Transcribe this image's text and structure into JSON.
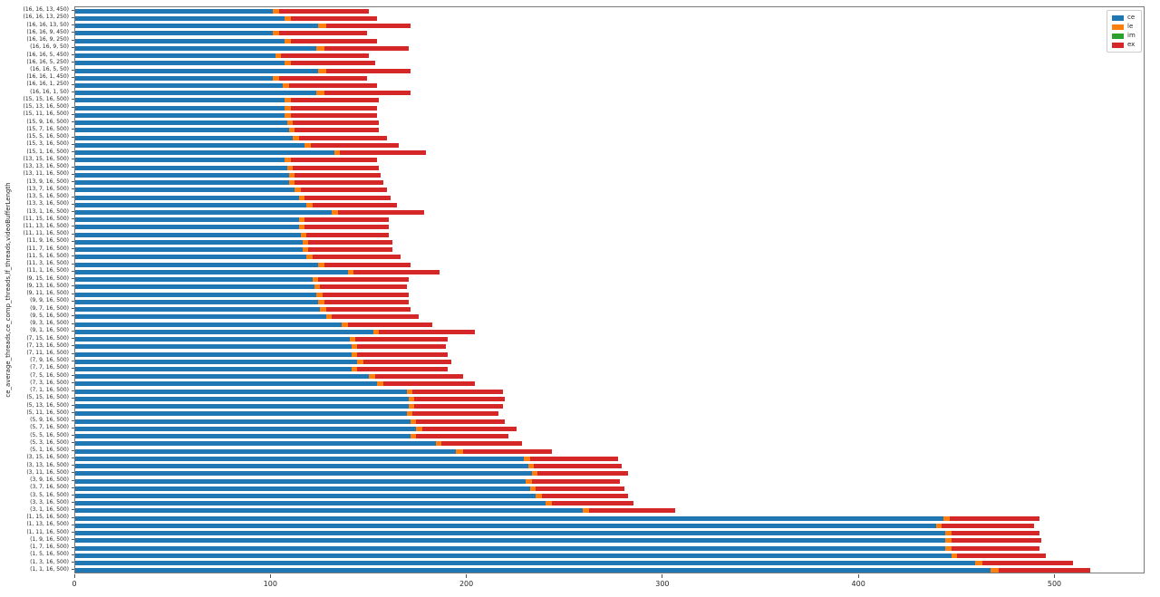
{
  "chart_data": {
    "type": "bar",
    "orientation": "horizontal",
    "stacked": true,
    "title": "",
    "xlabel": "",
    "ylabel": "ce_average_threads,ce_comp_threads,lf_threads,videoBufferLength",
    "xlim": [
      0,
      546
    ],
    "xticks": [
      0,
      100,
      200,
      300,
      400,
      500
    ],
    "grid": false,
    "legend_position": "upper right",
    "colors": {
      "ce": "#1f77b4",
      "le": "#ff7f0e",
      "im": "#2ca02c",
      "ex": "#d62728"
    },
    "legend": [
      {
        "name": "ce",
        "color": "#1f77b4"
      },
      {
        "name": "le",
        "color": "#ff7f0e"
      },
      {
        "name": "im",
        "color": "#2ca02c"
      },
      {
        "name": "ex",
        "color": "#d62728"
      }
    ],
    "categories": [
      "(16, 16, 13, 450)",
      "(16, 16, 13, 250)",
      "(16, 16, 13, 50)",
      "(16, 16, 9, 450)",
      "(16, 16, 9, 250)",
      "(16, 16, 9, 50)",
      "(16, 16, 5, 450)",
      "(16, 16, 5, 250)",
      "(16, 16, 5, 50)",
      "(16, 16, 1, 450)",
      "(16, 16, 1, 250)",
      "(16, 16, 1, 50)",
      "(15, 15, 16, 500)",
      "(15, 13, 16, 500)",
      "(15, 11, 16, 500)",
      "(15, 9, 16, 500)",
      "(15, 7, 16, 500)",
      "(15, 5, 16, 500)",
      "(15, 3, 16, 500)",
      "(15, 1, 16, 500)",
      "(13, 15, 16, 500)",
      "(13, 13, 16, 500)",
      "(13, 11, 16, 500)",
      "(13, 9, 16, 500)",
      "(13, 7, 16, 500)",
      "(13, 5, 16, 500)",
      "(13, 3, 16, 500)",
      "(13, 1, 16, 500)",
      "(11, 15, 16, 500)",
      "(11, 13, 16, 500)",
      "(11, 11, 16, 500)",
      "(11, 9, 16, 500)",
      "(11, 7, 16, 500)",
      "(11, 5, 16, 500)",
      "(11, 3, 16, 500)",
      "(11, 1, 16, 500)",
      "(9, 15, 16, 500)",
      "(9, 13, 16, 500)",
      "(9, 11, 16, 500)",
      "(9, 9, 16, 500)",
      "(9, 7, 16, 500)",
      "(9, 5, 16, 500)",
      "(9, 3, 16, 500)",
      "(9, 1, 16, 500)",
      "(7, 15, 16, 500)",
      "(7, 13, 16, 500)",
      "(7, 11, 16, 500)",
      "(7, 9, 16, 500)",
      "(7, 7, 16, 500)",
      "(7, 5, 16, 500)",
      "(7, 3, 16, 500)",
      "(7, 1, 16, 500)",
      "(5, 15, 16, 500)",
      "(5, 13, 16, 500)",
      "(5, 11, 16, 500)",
      "(5, 9, 16, 500)",
      "(5, 7, 16, 500)",
      "(5, 5, 16, 500)",
      "(5, 3, 16, 500)",
      "(5, 1, 16, 500)",
      "(3, 15, 16, 500)",
      "(3, 13, 16, 500)",
      "(3, 11, 16, 500)",
      "(3, 9, 16, 500)",
      "(3, 7, 16, 500)",
      "(3, 5, 16, 500)",
      "(3, 3, 16, 500)",
      "(3, 1, 16, 500)",
      "(1, 15, 16, 500)",
      "(1, 13, 16, 500)",
      "(1, 11, 16, 500)",
      "(1, 9, 16, 500)",
      "(1, 7, 16, 500)",
      "(1, 5, 16, 500)",
      "(1, 3, 16, 500)",
      "(1, 1, 16, 500)"
    ],
    "series": [
      {
        "name": "ce",
        "values": [
          101,
          107,
          124,
          101,
          107,
          123,
          102,
          107,
          124,
          101,
          106,
          123,
          107,
          107,
          107,
          108,
          109,
          111,
          117,
          132,
          107,
          108,
          109,
          109,
          112,
          114,
          118,
          131,
          114,
          114,
          115,
          116,
          116,
          118,
          124,
          139,
          121,
          122,
          123,
          124,
          125,
          128,
          136,
          152,
          140,
          141,
          141,
          144,
          141,
          150,
          154,
          169,
          170,
          170,
          169,
          171,
          174,
          171,
          184,
          194,
          229,
          231,
          233,
          230,
          232,
          235,
          240,
          259,
          443,
          439,
          444,
          444,
          444,
          447,
          459,
          467
        ]
      },
      {
        "name": "le",
        "values": [
          3,
          3,
          4,
          3,
          3,
          4,
          3,
          3,
          4,
          3,
          3,
          4,
          3,
          3,
          3,
          3,
          3,
          3,
          3,
          3,
          3,
          3,
          3,
          3,
          3,
          3,
          3,
          3,
          3,
          3,
          3,
          3,
          3,
          3,
          3,
          3,
          3,
          3,
          3,
          3,
          3,
          3,
          3,
          3,
          3,
          3,
          3,
          3,
          3,
          3,
          3,
          3,
          3,
          3,
          3,
          3,
          3,
          3,
          3,
          4,
          3,
          3,
          3,
          3,
          3,
          3,
          3,
          3,
          3,
          3,
          3,
          3,
          3,
          3,
          4,
          4
        ]
      },
      {
        "name": "im",
        "values": [
          0,
          0,
          0,
          0,
          0,
          0,
          0,
          0,
          0,
          0,
          0,
          0,
          0,
          0,
          0,
          0,
          0,
          0,
          0,
          0,
          0,
          0,
          0,
          0,
          0,
          0,
          0,
          0,
          0,
          0,
          0,
          0,
          0,
          0,
          0,
          0,
          0,
          0,
          0,
          0,
          0,
          0,
          0,
          0,
          0,
          0,
          0,
          0,
          0,
          0,
          0,
          0,
          0,
          0,
          0,
          0,
          0,
          0,
          0,
          0,
          0,
          0,
          0,
          0,
          0,
          0,
          0,
          0,
          0,
          0,
          0,
          0,
          0,
          0,
          0,
          0
        ]
      },
      {
        "name": "ex",
        "values": [
          46,
          44,
          43,
          45,
          44,
          43,
          45,
          43,
          43,
          45,
          45,
          44,
          45,
          44,
          44,
          44,
          43,
          45,
          45,
          44,
          44,
          44,
          44,
          45,
          44,
          44,
          43,
          44,
          43,
          43,
          42,
          43,
          43,
          45,
          44,
          44,
          46,
          44,
          44,
          43,
          43,
          44,
          43,
          49,
          47,
          45,
          46,
          45,
          46,
          45,
          47,
          46,
          46,
          45,
          44,
          45,
          48,
          47,
          41,
          45,
          45,
          45,
          46,
          45,
          45,
          44,
          42,
          44,
          46,
          47,
          45,
          46,
          45,
          45,
          46,
          47
        ]
      }
    ]
  }
}
